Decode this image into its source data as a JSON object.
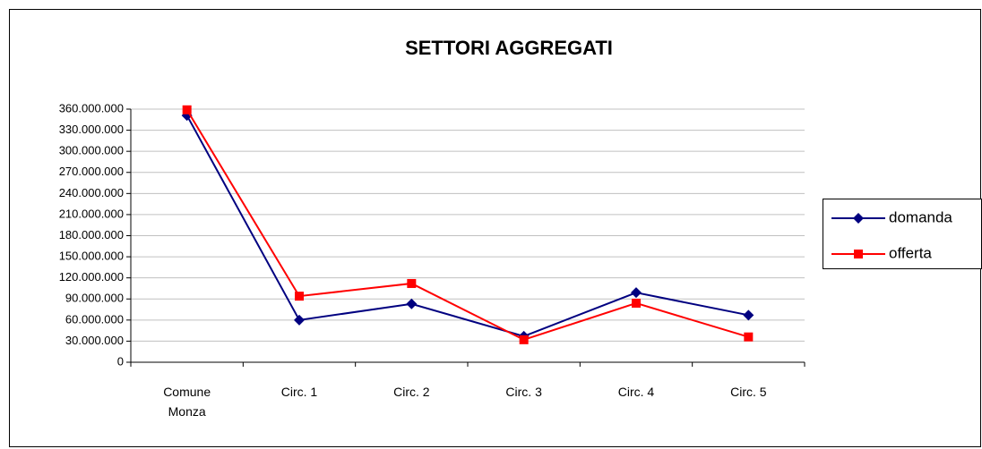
{
  "chart_data": {
    "type": "line",
    "title": "SETTORI AGGREGATI",
    "categories": [
      "Comune Monza",
      "Circ. 1",
      "Circ. 2",
      "Circ. 3",
      "Circ. 4",
      "Circ. 5"
    ],
    "series": [
      {
        "name": "domanda",
        "color": "#000080",
        "marker": "diamond",
        "values": [
          351000000,
          60000000,
          83000000,
          37000000,
          99000000,
          67000000
        ]
      },
      {
        "name": "offerta",
        "color": "#ff0000",
        "marker": "square",
        "values": [
          359000000,
          94000000,
          112000000,
          32000000,
          84000000,
          36000000
        ]
      }
    ],
    "ylim": [
      0,
      360000000
    ],
    "yticks": [
      0,
      {
        "value": 30000000,
        "label": "30.000.000"
      },
      {
        "value": 60000000,
        "label": "60.000.000"
      },
      {
        "value": 90000000,
        "label": "90.000.000"
      },
      {
        "value": 120000000,
        "label": "120.000.000"
      },
      {
        "value": 150000000,
        "label": "150.000.000"
      },
      {
        "value": 180000000,
        "label": "180.000.000"
      },
      {
        "value": 210000000,
        "label": "210.000.000"
      },
      {
        "value": 240000000,
        "label": "240.000.000"
      },
      {
        "value": 270000000,
        "label": "270.000.000"
      },
      {
        "value": 300000000,
        "label": "300.000.000"
      },
      {
        "value": 330000000,
        "label": "330.000.000"
      },
      {
        "value": 360000000,
        "label": "360.000.000"
      }
    ],
    "grid": true,
    "legend": "right"
  }
}
